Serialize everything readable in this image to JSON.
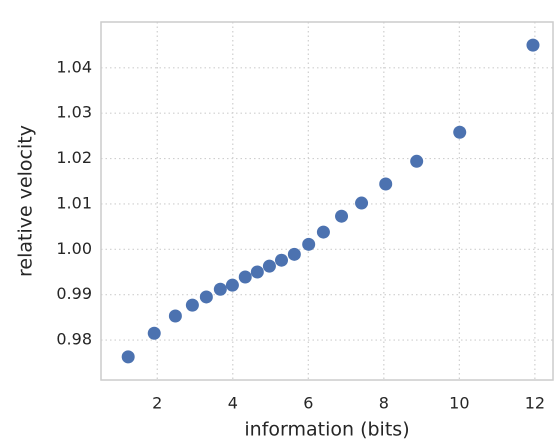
{
  "chart_data": {
    "type": "scatter",
    "xlabel": "information (bits)",
    "ylabel": "relative velocity",
    "color": "#4c72b0",
    "grid": true,
    "xlim": [
      0.51,
      12.48
    ],
    "ylim": [
      0.9712,
      1.0501
    ],
    "xticks": [
      2,
      4,
      6,
      8,
      10,
      12
    ],
    "yticks": [
      0.98,
      0.99,
      {
        "value": 1,
        "label": "1.00"
      },
      1.01,
      1.02,
      1.03,
      1.04
    ],
    "x": [
      1.23,
      1.92,
      2.48,
      2.93,
      3.3,
      3.67,
      3.99,
      4.33,
      4.65,
      4.97,
      5.29,
      5.63,
      6.01,
      6.4,
      6.88,
      7.41,
      8.05,
      8.87,
      10.01,
      11.95
    ],
    "y": [
      0.9763,
      0.9815,
      0.9853,
      0.9877,
      0.9895,
      0.9912,
      0.9921,
      0.9939,
      0.995,
      0.9963,
      0.9976,
      0.9989,
      1.0011,
      1.0038,
      1.0073,
      1.0102,
      1.0144,
      1.0194,
      1.0258,
      1.045
    ]
  }
}
